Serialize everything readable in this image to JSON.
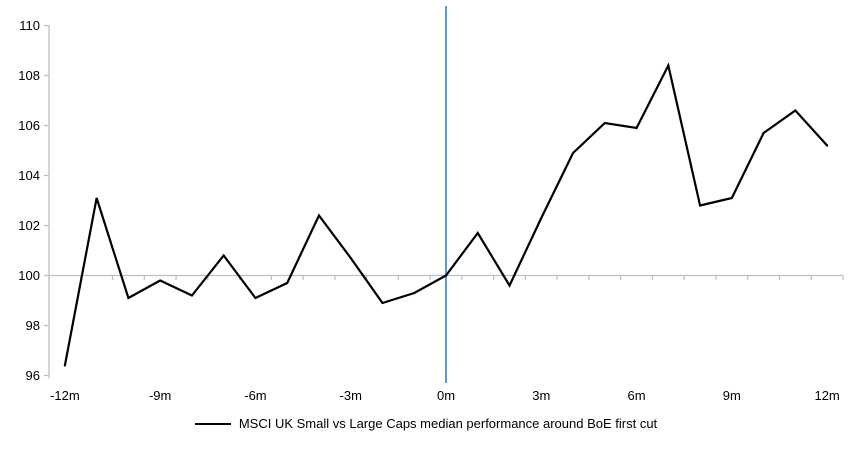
{
  "chart_data": {
    "type": "line",
    "title": "",
    "xlabel": "",
    "ylabel": "",
    "x": [
      -12,
      -11,
      -10,
      -9,
      -8,
      -7,
      -6,
      -5,
      -4,
      -3,
      -2,
      -1,
      0,
      1,
      2,
      3,
      4,
      5,
      6,
      7,
      8,
      9,
      10,
      11,
      12
    ],
    "series": [
      {
        "name": "MSCI UK Small vs Large Caps median performance around BoE first cut",
        "values": [
          96.4,
          103.1,
          99.1,
          99.8,
          99.2,
          100.8,
          99.1,
          99.7,
          102.4,
          100.7,
          98.9,
          99.3,
          100.0,
          101.7,
          99.6,
          102.3,
          104.9,
          106.1,
          105.9,
          108.4,
          102.8,
          103.1,
          105.7,
          106.6,
          105.2
        ]
      }
    ],
    "ylim": [
      96,
      110
    ],
    "yticks": [
      96,
      98,
      100,
      102,
      104,
      106,
      108,
      110
    ],
    "xticks": [
      {
        "month": -12,
        "label": "-12m"
      },
      {
        "month": -9,
        "label": "-9m"
      },
      {
        "month": -6,
        "label": "-6m"
      },
      {
        "month": -3,
        "label": "-3m"
      },
      {
        "month": 0,
        "label": "0m"
      },
      {
        "month": 3,
        "label": "3m"
      },
      {
        "month": 6,
        "label": "6m"
      },
      {
        "month": 9,
        "label": "9m"
      },
      {
        "month": 12,
        "label": "12m"
      }
    ],
    "baseline": 100,
    "event_line_x": 0,
    "grid": false,
    "legend_position": "bottom",
    "colors": {
      "series": "#000000",
      "event_line": "#5B9BD5",
      "axis": "#BFBFBF",
      "text": "#000000"
    }
  }
}
